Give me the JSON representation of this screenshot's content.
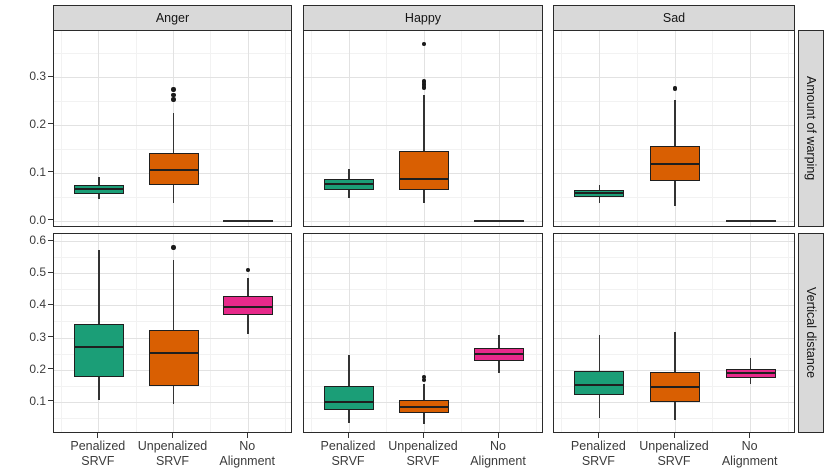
{
  "figure": {
    "kind": "faceted boxplot (ggplot2 style)",
    "background": "#ffffff",
    "strip_background": "#d9d9d9"
  },
  "colors": {
    "penalized_srvf": "#1B9E77",
    "unpenalized_srvf": "#D95F02",
    "no_alignment": "#E7298A",
    "box_border": "#1f1f1f",
    "gridline_major": "#e2e2e2",
    "gridline_minor": "#f2f2f2"
  },
  "chart_data": {
    "type": "boxplot",
    "facet_cols": [
      "Anger",
      "Happy",
      "Sad"
    ],
    "facet_rows": [
      "Amount of warping",
      "Vertical distance"
    ],
    "categories": [
      "Penalized SRVF",
      "Unpenalized SRVF",
      "No Alignment"
    ],
    "category_labels_2line": [
      [
        "Penalized",
        "SRVF"
      ],
      [
        "Unpenalized",
        "SRVF"
      ],
      [
        "No",
        "Alignment"
      ]
    ],
    "category_colors": [
      "#1B9E77",
      "#D95F02",
      "#E7298A"
    ],
    "legend": "none",
    "grid": "on",
    "rows": [
      {
        "facet_row_label": "Amount of warping",
        "ylim": [
          -0.015,
          0.396
        ],
        "ytick_labels": [
          "0.0",
          "0.1",
          "0.2",
          "0.3"
        ],
        "ytick_values": [
          0.0,
          0.1,
          0.2,
          0.3
        ],
        "panels": [
          {
            "facet": "Anger",
            "boxes": [
              {
                "cat": 0,
                "low": 0.045,
                "q1": 0.056,
                "median": 0.066,
                "q3": 0.075,
                "high": 0.092,
                "outliers": []
              },
              {
                "cat": 1,
                "low": 0.038,
                "q1": 0.075,
                "median": 0.106,
                "q3": 0.142,
                "high": 0.224,
                "outliers": [
                  0.253,
                  0.262,
                  0.274
                ]
              },
              {
                "cat": 2,
                "low": 0.0,
                "q1": 0.0,
                "median": 0.0,
                "q3": 0.0,
                "high": 0.0,
                "outliers": []
              }
            ]
          },
          {
            "facet": "Happy",
            "boxes": [
              {
                "cat": 0,
                "low": 0.047,
                "q1": 0.064,
                "median": 0.077,
                "q3": 0.088,
                "high": 0.108,
                "outliers": []
              },
              {
                "cat": 1,
                "low": 0.037,
                "q1": 0.064,
                "median": 0.088,
                "q3": 0.146,
                "high": 0.262,
                "outliers": [
                  0.278,
                  0.284,
                  0.291,
                  0.369
                ]
              },
              {
                "cat": 2,
                "low": 0.0,
                "q1": 0.0,
                "median": 0.0,
                "q3": 0.0,
                "high": 0.0,
                "outliers": []
              }
            ]
          },
          {
            "facet": "Sad",
            "boxes": [
              {
                "cat": 0,
                "low": 0.038,
                "q1": 0.049,
                "median": 0.058,
                "q3": 0.065,
                "high": 0.075,
                "outliers": []
              },
              {
                "cat": 1,
                "low": 0.03,
                "q1": 0.083,
                "median": 0.118,
                "q3": 0.156,
                "high": 0.253,
                "outliers": [
                  0.276
                ]
              },
              {
                "cat": 2,
                "low": 0.0,
                "q1": 0.0,
                "median": 0.0,
                "q3": 0.0,
                "high": 0.0,
                "outliers": []
              }
            ]
          }
        ]
      },
      {
        "facet_row_label": "Vertical distance",
        "ylim": [
          0.0,
          0.622
        ],
        "ytick_labels": [
          "0.1",
          "0.2",
          "0.3",
          "0.4",
          "0.5",
          "0.6"
        ],
        "ytick_values": [
          0.1,
          0.2,
          0.3,
          0.4,
          0.5,
          0.6
        ],
        "panels": [
          {
            "facet": "Anger",
            "boxes": [
              {
                "cat": 0,
                "low": 0.105,
                "q1": 0.178,
                "median": 0.272,
                "q3": 0.341,
                "high": 0.572,
                "outliers": []
              },
              {
                "cat": 1,
                "low": 0.093,
                "q1": 0.15,
                "median": 0.253,
                "q3": 0.323,
                "high": 0.54,
                "outliers": [
                  0.58
                ]
              },
              {
                "cat": 2,
                "low": 0.31,
                "q1": 0.369,
                "median": 0.395,
                "q3": 0.428,
                "high": 0.486,
                "outliers": [
                  0.51
                ]
              }
            ]
          },
          {
            "facet": "Happy",
            "boxes": [
              {
                "cat": 0,
                "low": 0.033,
                "q1": 0.075,
                "median": 0.1,
                "q3": 0.15,
                "high": 0.246,
                "outliers": []
              },
              {
                "cat": 1,
                "low": 0.031,
                "q1": 0.064,
                "median": 0.084,
                "q3": 0.105,
                "high": 0.156,
                "outliers": [
                  0.168,
                  0.178
                ]
              },
              {
                "cat": 2,
                "low": 0.191,
                "q1": 0.227,
                "median": 0.248,
                "q3": 0.267,
                "high": 0.307,
                "outliers": []
              }
            ]
          },
          {
            "facet": "Sad",
            "boxes": [
              {
                "cat": 0,
                "low": 0.051,
                "q1": 0.121,
                "median": 0.152,
                "q3": 0.196,
                "high": 0.308,
                "outliers": []
              },
              {
                "cat": 1,
                "low": 0.044,
                "q1": 0.101,
                "median": 0.147,
                "q3": 0.194,
                "high": 0.317,
                "outliers": []
              },
              {
                "cat": 2,
                "low": 0.155,
                "q1": 0.175,
                "median": 0.191,
                "q3": 0.203,
                "high": 0.237,
                "outliers": []
              }
            ]
          }
        ]
      }
    ]
  }
}
